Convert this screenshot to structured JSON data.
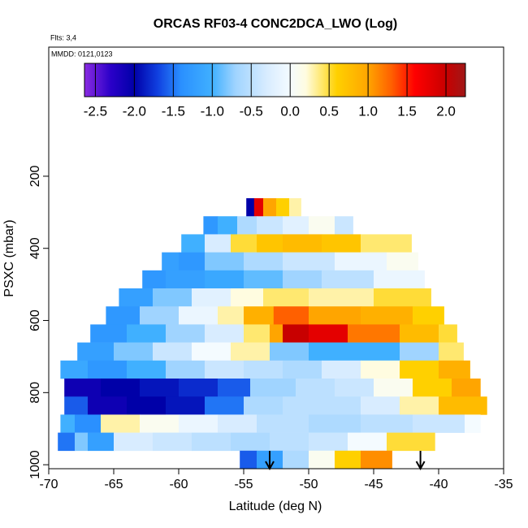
{
  "chart_data": {
    "type": "heatmap",
    "title": "ORCAS RF03-4 CONC2DCA_LWO (Log)",
    "subtitle": "Flts: 3,4",
    "annotation": "MMDD: 0121,0123",
    "xlabel": "Latitude (deg N)",
    "ylabel": "PSXC (mbar)",
    "xlim": [
      -70,
      -35
    ],
    "xticks": [
      -70,
      -65,
      -60,
      -55,
      -50,
      -45,
      -40,
      -35
    ],
    "ylim": [
      1011,
      -158
    ],
    "yticks": [
      200,
      400,
      600,
      800,
      1000
    ],
    "clim": [
      -2.64,
      2.25
    ],
    "cticks": [
      -2.5,
      {
        "value": -2.0,
        "label": "-2.0"
      },
      -1.5,
      {
        "value": -1.0,
        "label": "-1.0"
      },
      -0.5,
      {
        "value": 0.0,
        "label": "0.0"
      },
      0.5,
      {
        "value": 1.0,
        "label": "1.0"
      },
      1.5,
      {
        "value": 2.0,
        "label": "2.0"
      }
    ],
    "colorscale": [
      [
        -2.64,
        "#8a2be2"
      ],
      [
        -2.3,
        "#2a00c8"
      ],
      [
        -2.0,
        "#0000a8"
      ],
      [
        -1.7,
        "#1040e0"
      ],
      [
        -1.4,
        "#2a90ff"
      ],
      [
        -1.0,
        "#40b0ff"
      ],
      [
        -0.7,
        "#a0d4ff"
      ],
      [
        -0.3,
        "#d8ecff"
      ],
      [
        0.0,
        "#f4fbff"
      ],
      [
        0.2,
        "#fffce0"
      ],
      [
        0.4,
        "#ffe870"
      ],
      [
        0.6,
        "#ffd000"
      ],
      [
        1.0,
        "#ffa500"
      ],
      [
        1.3,
        "#ff6000"
      ],
      [
        1.6,
        "#ff0000"
      ],
      [
        2.0,
        "#c80000"
      ],
      [
        2.25,
        "#a01818"
      ]
    ],
    "markers": [
      -53,
      -41.4
    ],
    "rows": [
      {
        "p": [
          261,
          311
        ],
        "lats": [
          -54.8,
          -54.2,
          -53.5,
          -52.5,
          -51.5,
          -50.6
        ],
        "values": [
          -2.0,
          1.8,
          1.0,
          0.6,
          0.3
        ]
      },
      {
        "p": [
          311,
          361
        ],
        "lats": [
          -58.1,
          -57,
          -55.5,
          -54,
          -52,
          -50,
          -48,
          -46.6
        ],
        "values": [
          -1.3,
          -1.0,
          -0.6,
          -0.4,
          -0.2,
          0.1,
          -0.4
        ]
      },
      {
        "p": [
          361,
          411
        ],
        "lats": [
          -59.8,
          -58,
          -56,
          -54,
          -52,
          -49,
          -46,
          -42.1
        ],
        "values": [
          -1.0,
          -0.3,
          0.5,
          0.7,
          0.8,
          0.7,
          0.4
        ]
      },
      {
        "p": [
          411,
          461
        ],
        "lats": [
          -61.3,
          -60,
          -58,
          -55,
          -52,
          -48,
          -44,
          -41.6
        ],
        "values": [
          -1.2,
          -1.3,
          -0.8,
          -0.6,
          -0.4,
          -0.1,
          0.1
        ]
      },
      {
        "p": [
          461,
          511
        ],
        "lats": [
          -62.8,
          -61,
          -58,
          -55,
          -52,
          -49,
          -45,
          -41.1
        ],
        "values": [
          -1.3,
          -1.2,
          -1.1,
          -0.9,
          -0.7,
          -0.5,
          -0.1
        ]
      },
      {
        "p": [
          511,
          561
        ],
        "lats": [
          -64.6,
          -62,
          -59,
          -56,
          -53.5,
          -50,
          -45,
          -40.6
        ],
        "values": [
          -1.2,
          -0.8,
          -0.2,
          0.2,
          0.4,
          0.3,
          0.5
        ]
      },
      {
        "p": [
          561,
          611
        ],
        "lats": [
          -65.6,
          -63,
          -60,
          -57,
          -55,
          -52.7,
          -50,
          -46,
          -42,
          -39.6
        ],
        "values": [
          -1.3,
          -0.7,
          -0.1,
          0.3,
          0.9,
          1.3,
          1.0,
          0.9,
          0.6
        ]
      },
      {
        "p": [
          611,
          661
        ],
        "lats": [
          -66.8,
          -64,
          -61,
          -58,
          -55,
          -53,
          -52,
          -50,
          -47,
          -43,
          -40,
          -38.6
        ],
        "values": [
          -1.3,
          -1.0,
          -0.7,
          -0.3,
          0.4,
          1.0,
          2.0,
          1.8,
          1.2,
          0.8,
          0.5
        ]
      },
      {
        "p": [
          661,
          711
        ],
        "lats": [
          -67.8,
          -65,
          -62,
          -59,
          -56,
          -53,
          -50,
          -46,
          -43,
          -40,
          -38.1
        ],
        "values": [
          -1.2,
          -0.8,
          -0.4,
          0.0,
          0.3,
          -0.8,
          -1.0,
          -1.0,
          -0.7,
          0.4
        ]
      },
      {
        "p": [
          711,
          761
        ],
        "lats": [
          -69.1,
          -67,
          -64,
          -61,
          -58,
          -55,
          -52,
          -49,
          -46,
          -43,
          -40,
          -37.6
        ],
        "values": [
          -1.1,
          -1.3,
          -1.0,
          -0.7,
          -0.4,
          -0.5,
          -0.6,
          -0.3,
          0.2,
          0.6,
          0.9
        ]
      },
      {
        "p": [
          761,
          811
        ],
        "lats": [
          -68.8,
          -66,
          -63,
          -60,
          -57,
          -54.5,
          -51,
          -48,
          -45,
          -42,
          -39,
          -36.8
        ],
        "values": [
          -2.1,
          -2.0,
          -1.9,
          -1.8,
          -1.6,
          -0.7,
          -0.5,
          -0.4,
          0.1,
          0.6,
          1.0
        ]
      },
      {
        "p": [
          811,
          861
        ],
        "lats": [
          -68.8,
          -67,
          -64,
          -61,
          -58,
          -55,
          -52,
          -49,
          -46,
          -43,
          -40,
          -36.3
        ],
        "values": [
          -1.6,
          -2.1,
          -2.0,
          -1.9,
          -1.5,
          -0.6,
          -0.5,
          -0.5,
          -0.3,
          0.3,
          0.8
        ]
      },
      {
        "p": [
          861,
          911
        ],
        "lats": [
          -69.1,
          -68,
          -66,
          -63,
          -60,
          -57,
          -54,
          -50,
          -46,
          -42,
          -38,
          -36.8
        ],
        "values": [
          -1.0,
          -1.4,
          0.3,
          0.1,
          -0.1,
          -0.3,
          -0.5,
          -0.6,
          -0.5,
          -0.4,
          0.0
        ]
      },
      {
        "p": [
          911,
          961
        ],
        "lats": [
          -69.3,
          -68,
          -67,
          -65,
          -62,
          -59,
          -56,
          -53,
          -50,
          -47,
          -44,
          -40.3
        ],
        "values": [
          -1.5,
          -0.8,
          -1.2,
          -0.3,
          -0.4,
          -0.5,
          -0.6,
          -0.5,
          -0.4,
          0.0,
          0.5
        ]
      },
      {
        "p": [
          961,
          1011
        ],
        "lats": [
          -55.3,
          -54,
          -52,
          -50,
          -48,
          -46,
          -43.6
        ],
        "values": [
          -1.6,
          -1.2,
          -0.6,
          0.1,
          0.6,
          1.1
        ]
      }
    ]
  }
}
